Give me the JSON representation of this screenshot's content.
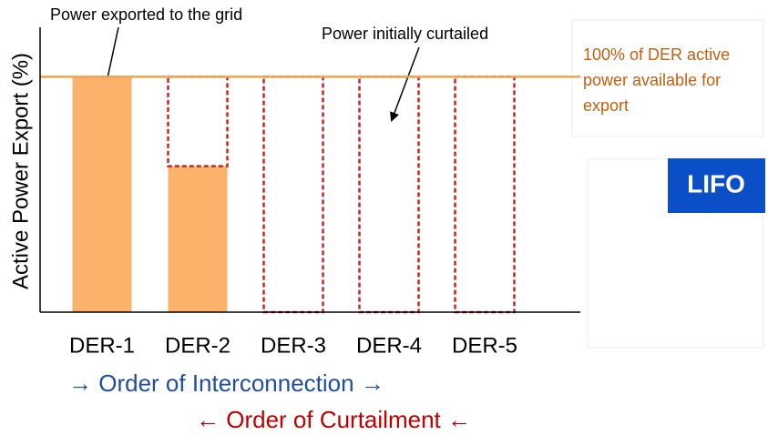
{
  "chart_data": {
    "type": "stacked_bar",
    "y_label": "Active Power Export (%)",
    "categories": [
      "DER-1",
      "DER-2",
      "DER-3",
      "DER-4",
      "DER-5"
    ],
    "series": [
      {
        "name": "Power exported to the grid",
        "color": "#fbb26a",
        "values": [
          100,
          62,
          0,
          0,
          0
        ]
      },
      {
        "name": "Power initially curtailed",
        "color": "#c0282c",
        "values": [
          0,
          38,
          100,
          100,
          100
        ]
      }
    ],
    "ylim": [
      0,
      121
    ],
    "reference_line": {
      "value": 100,
      "color": "#f4a24a",
      "label": "100% of DER active power available for export"
    },
    "badge": "LIFO",
    "interconnection_order": "→ Order of Interconnection →",
    "curtailment_order": "← Order of Curtailment ←"
  }
}
